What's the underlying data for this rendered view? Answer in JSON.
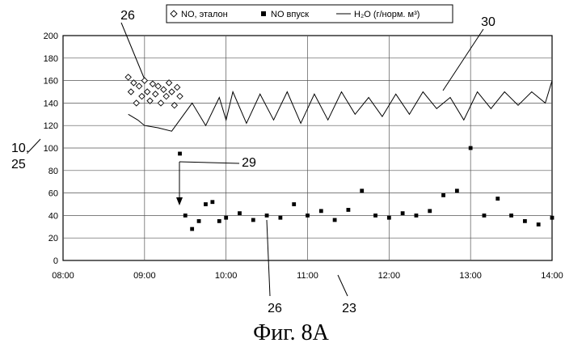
{
  "chart_data": {
    "type": "line",
    "x_unit": "time (hh:mm)",
    "x_ticks": [
      "08:00",
      "09:00",
      "10:00",
      "11:00",
      "12:00",
      "13:00",
      "14:00"
    ],
    "y_ticks": [
      "0",
      "20",
      "40",
      "60",
      "80",
      "100",
      "120",
      "140",
      "160",
      "180",
      "200"
    ],
    "xlim": [
      "08:00",
      "14:00"
    ],
    "ylim": [
      0,
      200
    ],
    "grid": true,
    "legend_position": "top",
    "legend": [
      {
        "marker": "open-diamond",
        "label": "NO, эталон"
      },
      {
        "marker": "filled-square",
        "label": "NO впуск"
      },
      {
        "marker": "line",
        "label": "H₂O (г/норм. м³)"
      }
    ],
    "series": [
      {
        "name": "NO, эталон",
        "style": "open-diamond",
        "x": [
          "08:48",
          "08:50",
          "08:52",
          "08:54",
          "08:56",
          "08:58",
          "09:00",
          "09:02",
          "09:04",
          "09:06",
          "09:08",
          "09:10",
          "09:12",
          "09:14",
          "09:16",
          "09:18",
          "09:20",
          "09:22",
          "09:24",
          "09:26"
        ],
        "y": [
          163,
          150,
          158,
          140,
          155,
          146,
          160,
          150,
          142,
          157,
          148,
          155,
          140,
          152,
          146,
          158,
          150,
          138,
          154,
          146
        ]
      },
      {
        "name": "NO впуск",
        "style": "filled-square",
        "x": [
          "09:26",
          "09:30",
          "09:35",
          "09:40",
          "09:45",
          "09:50",
          "09:55",
          "10:00",
          "10:10",
          "10:20",
          "10:30",
          "10:40",
          "10:50",
          "11:00",
          "11:10",
          "11:20",
          "11:30",
          "11:40",
          "11:50",
          "12:00",
          "12:10",
          "12:20",
          "12:30",
          "12:40",
          "12:50",
          "13:00",
          "13:10",
          "13:20",
          "13:30",
          "13:40",
          "13:50",
          "14:00"
        ],
        "y": [
          95,
          40,
          28,
          35,
          50,
          52,
          35,
          38,
          42,
          36,
          40,
          38,
          50,
          40,
          44,
          36,
          45,
          62,
          40,
          38,
          42,
          40,
          44,
          58,
          62,
          100,
          40,
          55,
          40,
          35,
          32,
          38
        ]
      },
      {
        "name": "H₂O (г/норм. м³)",
        "style": "line",
        "x": [
          "08:48",
          "08:55",
          "09:00",
          "09:10",
          "09:20",
          "09:26",
          "09:35",
          "09:45",
          "09:55",
          "10:00",
          "10:05",
          "10:15",
          "10:25",
          "10:35",
          "10:45",
          "10:55",
          "11:05",
          "11:15",
          "11:25",
          "11:35",
          "11:45",
          "11:55",
          "12:05",
          "12:15",
          "12:25",
          "12:35",
          "12:45",
          "12:55",
          "13:05",
          "13:15",
          "13:25",
          "13:35",
          "13:45",
          "13:55",
          "14:00"
        ],
        "y": [
          130,
          125,
          120,
          118,
          115,
          125,
          140,
          120,
          145,
          125,
          150,
          122,
          148,
          125,
          150,
          122,
          148,
          125,
          150,
          130,
          145,
          128,
          148,
          130,
          150,
          135,
          145,
          125,
          150,
          135,
          150,
          138,
          150,
          140,
          160
        ]
      }
    ],
    "annotations": [
      {
        "text": "26",
        "target": "NO, эталон cluster"
      },
      {
        "text": "30",
        "target": "H₂O curve"
      },
      {
        "text": "10,",
        "target": "y axis"
      },
      {
        "text": "25",
        "target": "y axis"
      },
      {
        "text": "29",
        "target": "NO step change"
      },
      {
        "text": "26",
        "target": "NO впуск series"
      },
      {
        "text": "23",
        "target": "x axis"
      }
    ],
    "caption": "Фиг. 8A"
  }
}
